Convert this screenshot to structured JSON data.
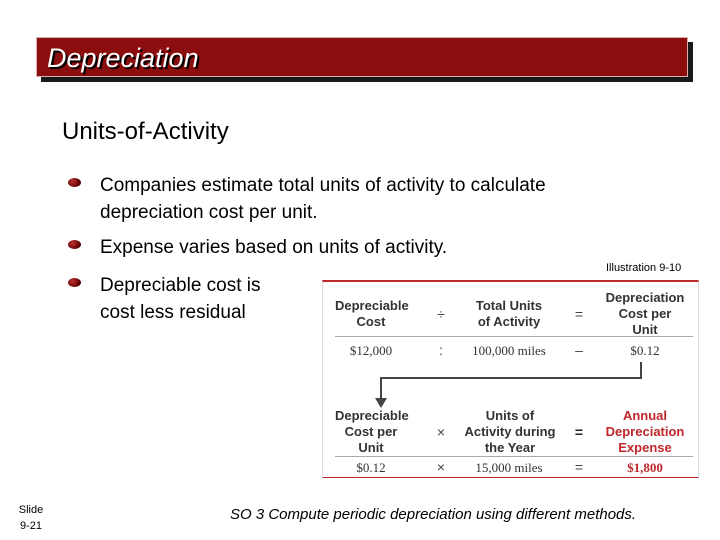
{
  "title": "Depreciation",
  "subheading": "Units-of-Activity",
  "bullets": [
    {
      "line1": "Companies estimate total units of activity to calculate",
      "line2": "depreciation cost per unit."
    },
    {
      "line1": "Expense varies based on units of activity.",
      "line2": ""
    },
    {
      "line1": "Depreciable cost is",
      "line2": "cost less residual"
    }
  ],
  "illustration": {
    "label": "Illustration 9-10",
    "row1": {
      "h1a": "Depreciable",
      "h1b": "Cost",
      "op1": "÷",
      "h2a": "Total Units",
      "h2b": "of Activity",
      "op2": "=",
      "h3a": "Depreciation",
      "h3b": "Cost per",
      "h3c": "Unit",
      "v1": "$12,000",
      "vop1": ":",
      "v2": "100,000 miles",
      "vop2": "–",
      "v3": "$0.12"
    },
    "row2": {
      "h1a": "Depreciable",
      "h1b": "Cost per",
      "h1c": "Unit",
      "op1": "×",
      "h2a": "Units of",
      "h2b": "Activity during",
      "h2c": "the Year",
      "op2": "=",
      "h3a": "Annual",
      "h3b": "Depreciation",
      "h3c": "Expense",
      "v1": "$0.12",
      "vop1": "×",
      "v2": "15,000 miles",
      "vop2": "=",
      "v3": "$1,800"
    },
    "colors": {
      "accent": "#c0282b"
    }
  },
  "footer": {
    "slide_label": "Slide",
    "slide_number": "9-21",
    "so_text": "SO 3  Compute periodic depreciation using different methods."
  },
  "colors": {
    "banner": "#8b0d0d",
    "bullet": "#8b0000"
  }
}
